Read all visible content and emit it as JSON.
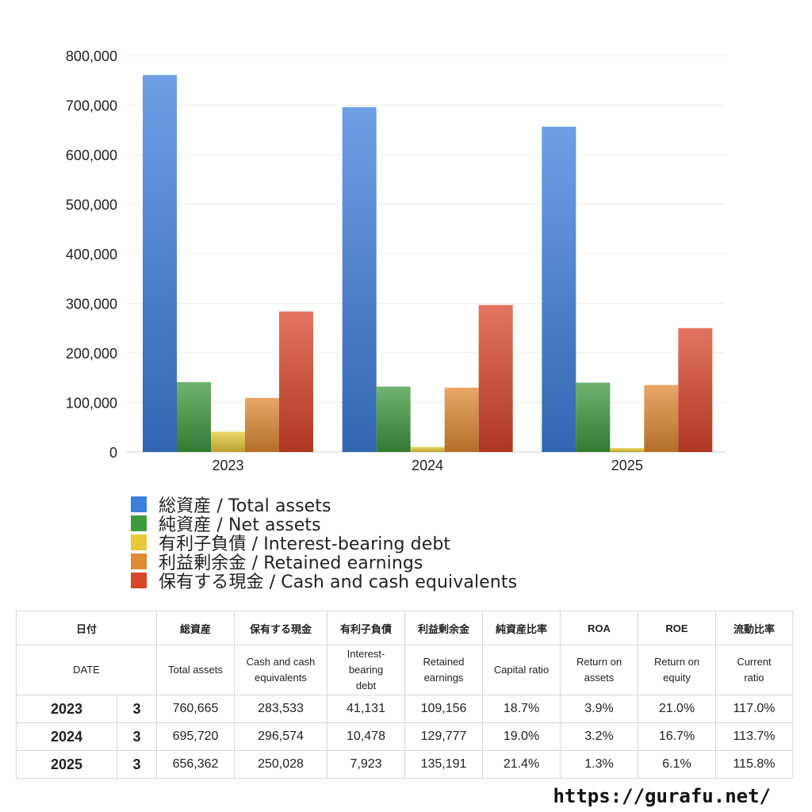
{
  "chart_data": {
    "type": "bar",
    "categories": [
      "2023",
      "2024",
      "2025"
    ],
    "ylim": [
      0,
      800000
    ],
    "yticks": [
      "0",
      "100,000",
      "200,000",
      "300,000",
      "400,000",
      "500,000",
      "600,000",
      "700,000",
      "800,000"
    ],
    "grid": true,
    "legend_position": "bottom",
    "series": [
      {
        "name": "総資産 / Total assets",
        "values": [
          760665,
          695720,
          656362
        ],
        "color": "#3f7fdc"
      },
      {
        "name": "純資産 / Net assets",
        "values": [
          141000,
          132000,
          140000
        ],
        "color": "#3f9a3e"
      },
      {
        "name": "有利子負債 / Interest-bearing debt",
        "values": [
          41131,
          10478,
          7923
        ],
        "color": "#e8c93a"
      },
      {
        "name": "利益剰余金 / Retained earnings",
        "values": [
          109156,
          129777,
          135191
        ],
        "color": "#e08a35"
      },
      {
        "name": "保有する現金 /  Cash and cash equivalents",
        "values": [
          283533,
          296574,
          250028
        ],
        "color": "#d9452a"
      }
    ]
  },
  "table": {
    "header_jp": [
      "日付",
      "総資産",
      "保有する現金",
      "有利子負債",
      "利益剰余金",
      "純資産比率",
      "ROA",
      "ROE",
      "流動比率"
    ],
    "header_en": [
      "DATE",
      "Total assets",
      "Cash and cash\nequivalents",
      "Interest-\nbearing\ndebt",
      "Retained\nearnings",
      "Capital ratio",
      "Return on\nassets",
      "Return on\nequity",
      "Current\nratio"
    ],
    "rows": [
      [
        "2023",
        "3",
        "760,665",
        "283,533",
        "41,131",
        "109,156",
        "18.7%",
        "3.9%",
        "21.0%",
        "117.0%"
      ],
      [
        "2024",
        "3",
        "695,720",
        "296,574",
        "10,478",
        "129,777",
        "19.0%",
        "3.2%",
        "16.7%",
        "113.7%"
      ],
      [
        "2025",
        "3",
        "656,362",
        "250,028",
        "7,923",
        "135,191",
        "21.4%",
        "1.3%",
        "6.1%",
        "115.8%"
      ]
    ]
  },
  "footer": {
    "url": "https://gurafu.net/"
  }
}
